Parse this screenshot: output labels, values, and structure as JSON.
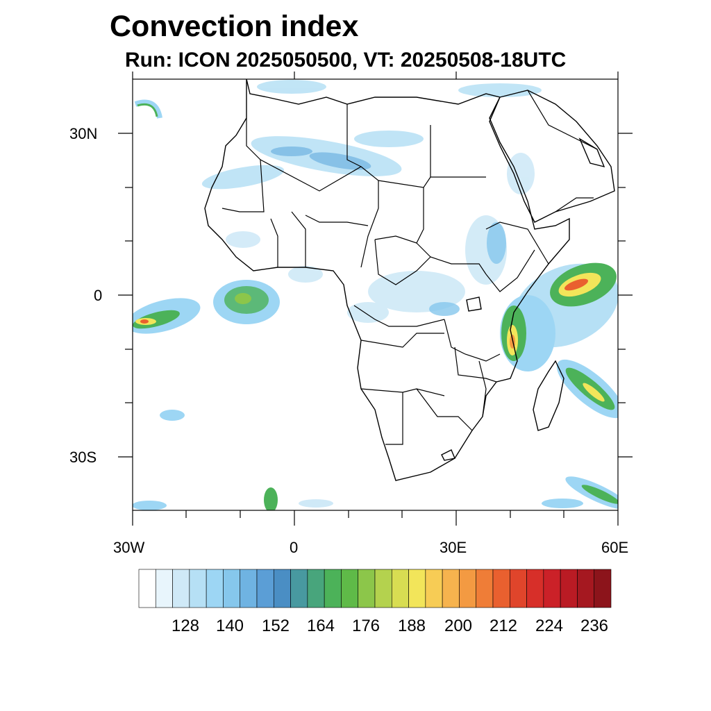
{
  "title": "Convection index",
  "subtitle": "Run: ICON 2025050500,  VT: 20250508-18UTC",
  "y_axis_labels": [
    "30N",
    "0",
    "30S"
  ],
  "x_axis_labels": [
    "30W",
    "0",
    "30E",
    "60E"
  ],
  "colorbar": {
    "labels": [
      "128",
      "140",
      "152",
      "164",
      "176",
      "188",
      "200",
      "212",
      "224",
      "236"
    ],
    "colors": [
      "#ffffff",
      "#e8f5fc",
      "#cfe9f7",
      "#b6e0f5",
      "#9dd6f4",
      "#86c7ec",
      "#6fb3e2",
      "#5b9ed6",
      "#4a8ec4",
      "#4899a0",
      "#48a57c",
      "#4cb259",
      "#5fba48",
      "#8cc64a",
      "#b4d24e",
      "#d8dd52",
      "#f2e55a",
      "#f7cc55",
      "#f6b34e",
      "#f39a42",
      "#ef7d37",
      "#e9602f",
      "#e0452b",
      "#d72f29",
      "#cb2128",
      "#ba1b24",
      "#a51820",
      "#8c141b"
    ]
  }
}
